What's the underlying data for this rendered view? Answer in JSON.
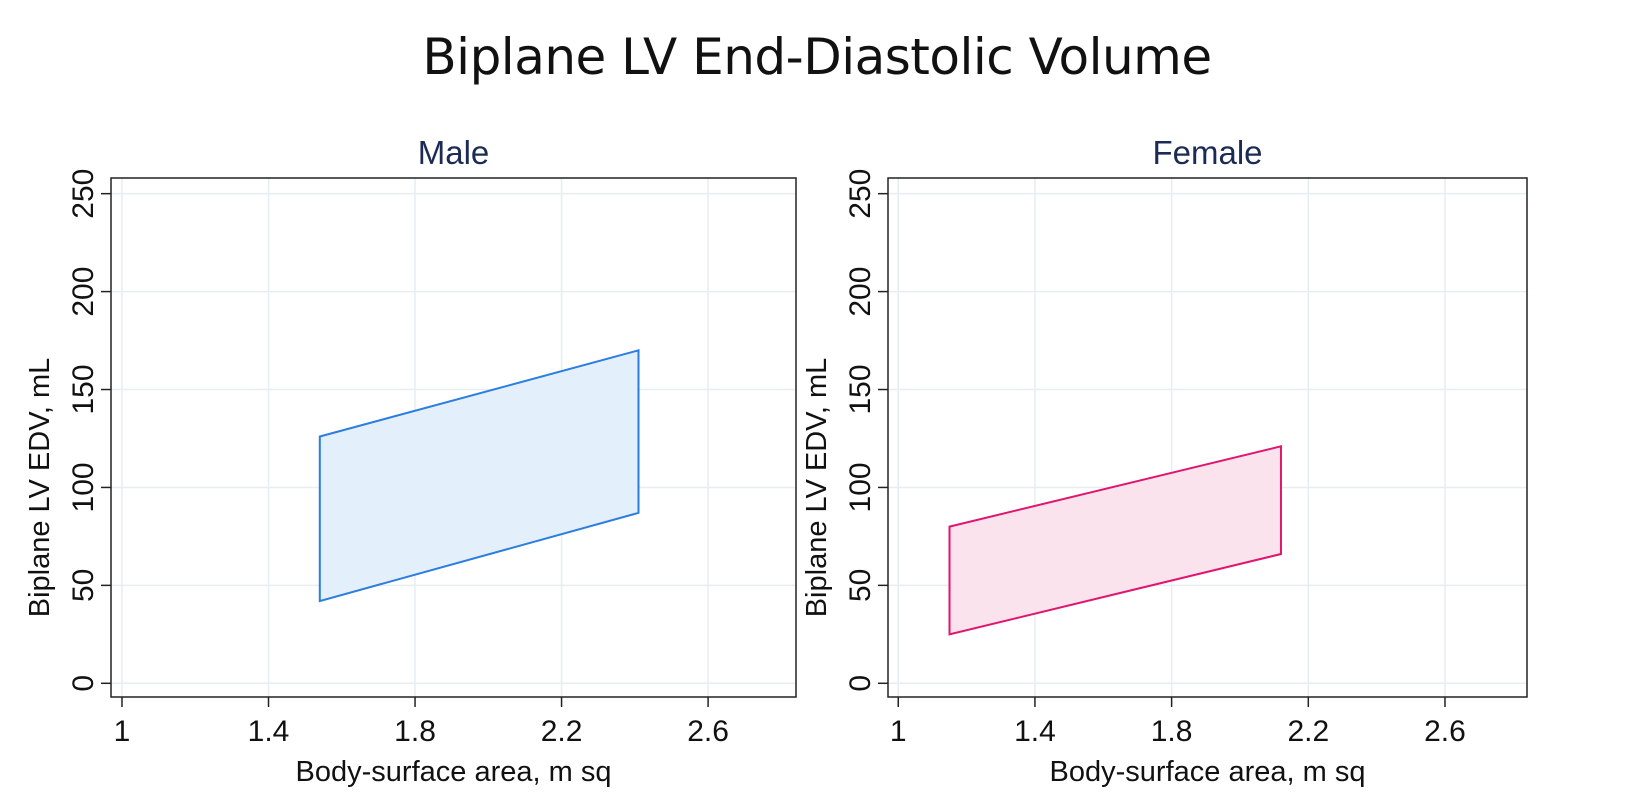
{
  "title": "Biplane LV End-Diastolic Volume",
  "chart_data": [
    {
      "type": "area",
      "title": "Male",
      "xlabel": "Body-surface area, m sq",
      "ylabel": "Biplane LV EDV, mL",
      "xlim": [
        0.97,
        2.84
      ],
      "ylim": [
        -7,
        258
      ],
      "xticks": [
        "1",
        "1.4",
        "1.8",
        "2.2",
        "2.6"
      ],
      "yticks": [
        "0",
        "50",
        "100",
        "150",
        "200",
        "250"
      ],
      "grid": true,
      "band": {
        "x": [
          1.54,
          2.41
        ],
        "upper": [
          126,
          170
        ],
        "lower": [
          42,
          87
        ]
      },
      "stroke": "#2b7de0",
      "fill": "#e3f0fb"
    },
    {
      "type": "area",
      "title": "Female",
      "xlabel": "Body-surface area, m sq",
      "ylabel": "Biplane LV EDV, mL",
      "xlim": [
        0.97,
        2.84
      ],
      "ylim": [
        -7,
        258
      ],
      "xticks": [
        "1",
        "1.4",
        "1.8",
        "2.2",
        "2.6"
      ],
      "yticks": [
        "0",
        "50",
        "100",
        "150",
        "200",
        "250"
      ],
      "grid": true,
      "band": {
        "x": [
          1.15,
          2.12
        ],
        "upper": [
          80,
          121
        ],
        "lower": [
          25,
          66
        ]
      },
      "stroke": "#e0166e",
      "fill": "#fbe3ee"
    }
  ]
}
